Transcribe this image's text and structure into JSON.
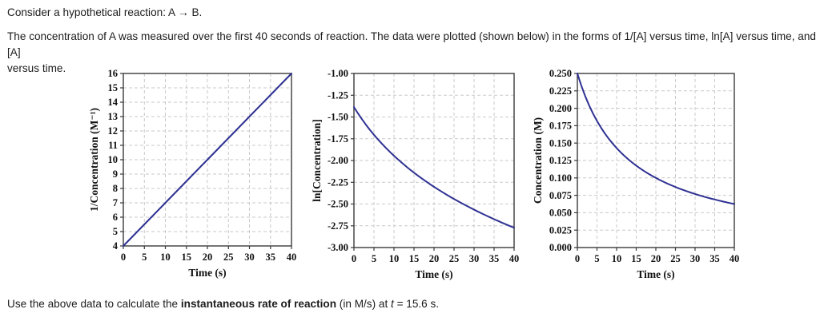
{
  "page": {
    "intro_line1": "Consider a hypothetical reaction: A → B.",
    "intro_para_line1": "The concentration of A was measured over the first 40 seconds of reaction. The data were plotted (shown below) in the forms of 1/[A] versus time, ln[A] versus time, and [A]",
    "intro_para_line2": "versus time.",
    "question": {
      "prefix": "Use the above data to calculate the ",
      "bold": "instantaneous rate of reaction",
      "middle": " (in M/s) at ",
      "t_var": "t",
      "suffix": " = 15.6 s."
    }
  },
  "colors": {
    "series_line": "#2e3192",
    "gridline": "#c9c9c9",
    "axis_border": "#3a3a3a",
    "text": "#111111",
    "background": "#ffffff"
  },
  "chart_data": [
    {
      "id": "inverse_concentration_vs_time",
      "type": "line",
      "title": "",
      "xlabel": "Time (s)",
      "ylabel": "1/Concentration (M⁻¹)",
      "xlim": [
        0,
        40
      ],
      "ylim": [
        4,
        16
      ],
      "x_ticks": [
        0,
        5,
        10,
        15,
        20,
        25,
        30,
        35,
        40
      ],
      "x_tick_labels": [
        "0",
        "5",
        "10",
        "15",
        "20",
        "25",
        "30",
        "35",
        "40"
      ],
      "y_ticks": [
        4,
        5,
        6,
        7,
        8,
        9,
        10,
        11,
        12,
        13,
        14,
        15,
        16
      ],
      "y_tick_labels": [
        "4",
        "5",
        "6",
        "7",
        "8",
        "9",
        "10",
        "11",
        "12",
        "13",
        "14",
        "15",
        "16"
      ],
      "grid": "dashed",
      "legend": "none",
      "series": [
        {
          "name": "1/[A]",
          "x": [
            0,
            5,
            10,
            15,
            20,
            25,
            30,
            35,
            40
          ],
          "y": [
            4,
            5.5,
            7,
            8.5,
            10,
            11.5,
            13,
            14.5,
            16
          ]
        }
      ]
    },
    {
      "id": "ln_concentration_vs_time",
      "type": "line",
      "title": "",
      "xlabel": "Time (s)",
      "ylabel": "ln[Concentration]",
      "xlim": [
        0,
        40
      ],
      "ylim": [
        -3.0,
        -1.0
      ],
      "x_ticks": [
        0,
        5,
        10,
        15,
        20,
        25,
        30,
        35,
        40
      ],
      "x_tick_labels": [
        "0",
        "5",
        "10",
        "15",
        "20",
        "25",
        "30",
        "35",
        "40"
      ],
      "y_ticks": [
        -3.0,
        -2.75,
        -2.5,
        -2.25,
        -2.0,
        -1.75,
        -1.5,
        -1.25,
        -1.0
      ],
      "y_tick_labels": [
        "-3.00",
        "-2.75",
        "-2.50",
        "-2.25",
        "-2.00",
        "-1.75",
        "-1.50",
        "-1.25",
        "-1.00"
      ],
      "grid": "dashed",
      "legend": "none",
      "series": [
        {
          "name": "ln[A]",
          "x": [
            0,
            1,
            2,
            3,
            4,
            5,
            6,
            7,
            8,
            9,
            10,
            11,
            12,
            13,
            14,
            15,
            16,
            17,
            18,
            19,
            20,
            21,
            22,
            23,
            24,
            25,
            26,
            27,
            28,
            29,
            30,
            31,
            32,
            33,
            34,
            35,
            36,
            37,
            38,
            39,
            40
          ],
          "y": [
            -1.3863,
            -1.4586,
            -1.5261,
            -1.5892,
            -1.6487,
            -1.7047,
            -1.7579,
            -1.8083,
            -1.8563,
            -1.9021,
            -1.9459,
            -1.9879,
            -2.0281,
            -2.0669,
            -2.1041,
            -2.1401,
            -2.1748,
            -2.2083,
            -2.2407,
            -2.2721,
            -2.3026,
            -2.3321,
            -2.3609,
            -2.3888,
            -2.4159,
            -2.4423,
            -2.4681,
            -2.4932,
            -2.5177,
            -2.5416,
            -2.5649,
            -2.5878,
            -2.6101,
            -2.6319,
            -2.6532,
            -2.6741,
            -2.6946,
            -2.7147,
            -2.7344,
            -2.7537,
            -2.7726
          ]
        }
      ]
    },
    {
      "id": "concentration_vs_time",
      "type": "line",
      "title": "",
      "xlabel": "Time (s)",
      "ylabel": "Concentration (M)",
      "xlim": [
        0,
        40
      ],
      "ylim": [
        0,
        0.25
      ],
      "x_ticks": [
        0,
        5,
        10,
        15,
        20,
        25,
        30,
        35,
        40
      ],
      "x_tick_labels": [
        "0",
        "5",
        "10",
        "15",
        "20",
        "25",
        "30",
        "35",
        "40"
      ],
      "y_ticks": [
        0,
        0.025,
        0.05,
        0.075,
        0.1,
        0.125,
        0.15,
        0.175,
        0.2,
        0.225,
        0.25
      ],
      "y_tick_labels": [
        "0.000",
        "0.025",
        "0.050",
        "0.075",
        "0.100",
        "0.125",
        "0.150",
        "0.175",
        "0.200",
        "0.225",
        "0.250"
      ],
      "grid": "dashed",
      "legend": "none",
      "series": [
        {
          "name": "[A]",
          "x": [
            0,
            1,
            2,
            3,
            4,
            5,
            6,
            7,
            8,
            9,
            10,
            11,
            12,
            13,
            14,
            15,
            16,
            17,
            18,
            19,
            20,
            21,
            22,
            23,
            24,
            25,
            26,
            27,
            28,
            29,
            30,
            31,
            32,
            33,
            34,
            35,
            36,
            37,
            38,
            39,
            40
          ],
          "y": [
            0.25,
            0.2326,
            0.2174,
            0.2041,
            0.1923,
            0.1818,
            0.1724,
            0.1639,
            0.1562,
            0.1493,
            0.1429,
            0.137,
            0.1316,
            0.1266,
            0.122,
            0.1176,
            0.1136,
            0.1099,
            0.1064,
            0.1031,
            0.1,
            0.0971,
            0.0943,
            0.0917,
            0.0893,
            0.087,
            0.0847,
            0.0826,
            0.0806,
            0.0787,
            0.0769,
            0.0752,
            0.0735,
            0.0719,
            0.0704,
            0.069,
            0.0676,
            0.0662,
            0.0649,
            0.0637,
            0.0625
          ]
        }
      ]
    }
  ]
}
